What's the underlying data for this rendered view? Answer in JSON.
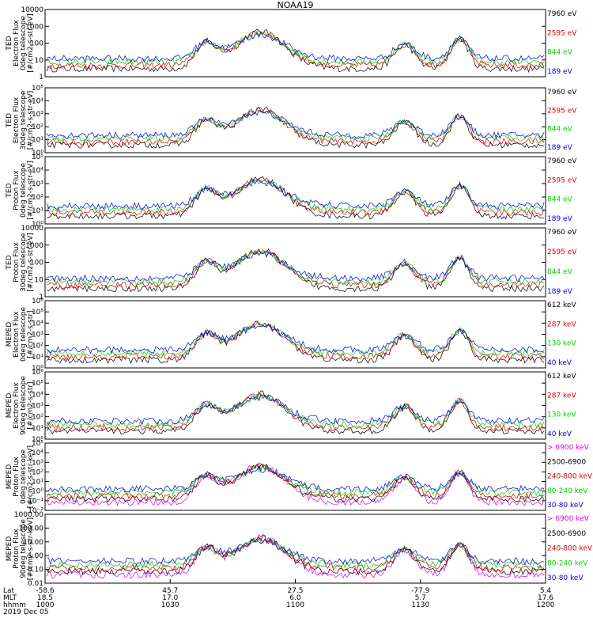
{
  "chart_data": {
    "type": "line",
    "title": "NOAA19",
    "date": "2019 Dec 05",
    "xaxis": {
      "rows": [
        {
          "label": "Lat",
          "values": [
            "-58.6",
            "45.7",
            "27.5",
            "-77.9",
            "5.4"
          ]
        },
        {
          "label": "MLT",
          "values": [
            "18.5",
            "17.0",
            "6.0",
            "5.7",
            "17.6"
          ]
        },
        {
          "label": "hhmm",
          "values": [
            "1000",
            "1030",
            "1100",
            "1130",
            "1200"
          ]
        }
      ]
    },
    "panels": [
      {
        "ylabel": [
          "TED",
          "Electron Flux",
          "0deg telescope",
          "[#/cm2-s-str-eV]"
        ],
        "yscale": "log",
        "ylim": [
          1,
          10000
        ],
        "ytick_labels": [
          "1",
          "10",
          "100",
          "1000",
          "10000"
        ],
        "legend": [
          {
            "text": "7960 eV",
            "color": "#000000"
          },
          {
            "text": "2595 eV",
            "color": "#e00000"
          },
          {
            "text": "844 eV",
            "color": "#00d000"
          },
          {
            "text": "189 eV",
            "color": "#0000e0"
          }
        ]
      },
      {
        "ylabel": [
          "TED",
          "Electron Flux",
          "30deg telescope",
          "[#/cm2-s-str-eV]"
        ],
        "yscale": "log",
        "ylim": [
          1,
          100000
        ],
        "ytick_labels": [
          "10⁰",
          "10¹",
          "10²",
          "10³",
          "10⁴",
          "10⁵"
        ],
        "legend": [
          {
            "text": "7960 eV",
            "color": "#000000"
          },
          {
            "text": "2595 eV",
            "color": "#e00000"
          },
          {
            "text": "844 eV",
            "color": "#00d000"
          },
          {
            "text": "189 eV",
            "color": "#0000e0"
          }
        ]
      },
      {
        "ylabel": [
          "TED",
          "Proton Flux",
          "0deg telescope",
          "[#/cm2-s-str-eV]"
        ],
        "yscale": "log",
        "ylim": [
          1,
          100000
        ],
        "ytick_labels": [
          "10⁰",
          "10¹",
          "10²",
          "10³",
          "10⁴",
          "10⁵"
        ],
        "legend": [
          {
            "text": "7960 eV",
            "color": "#000000"
          },
          {
            "text": "2595 eV",
            "color": "#e00000"
          },
          {
            "text": "844 eV",
            "color": "#00d000"
          },
          {
            "text": "189 eV",
            "color": "#0000e0"
          }
        ]
      },
      {
        "ylabel": [
          "TED",
          "Proton Flux",
          "30deg telescope",
          "[#/cm2-s-str-eV]"
        ],
        "yscale": "log",
        "ylim": [
          1,
          10000
        ],
        "ytick_labels": [
          "1",
          "10",
          "100",
          "1000",
          "10000"
        ],
        "legend": [
          {
            "text": "7960 eV",
            "color": "#000000"
          },
          {
            "text": "2595 eV",
            "color": "#e00000"
          },
          {
            "text": "844 eV",
            "color": "#00d000"
          },
          {
            "text": "189 eV",
            "color": "#0000e0"
          }
        ]
      },
      {
        "ylabel": [
          "MEPED",
          "Electron Flux",
          "0deg telescope",
          "[#/cm2-s-str]"
        ],
        "yscale": "log",
        "ylim": [
          1,
          1000000
        ],
        "ytick_labels": [
          "10⁰",
          "10¹",
          "10²",
          "10³",
          "10⁴",
          "10⁵",
          "10⁶"
        ],
        "legend": [
          {
            "text": "612 keV",
            "color": "#000000"
          },
          {
            "text": "287 keV",
            "color": "#e00000"
          },
          {
            "text": "130 keV",
            "color": "#00d000"
          },
          {
            "text": "40 keV",
            "color": "#0000e0"
          }
        ]
      },
      {
        "ylabel": [
          "MEPED",
          "Electron Flux",
          "90deg telescope",
          "[#/cm2-s-str]"
        ],
        "yscale": "log",
        "ylim": [
          1,
          1000000
        ],
        "ytick_labels": [
          "10⁰",
          "10¹",
          "10²",
          "10³",
          "10⁴",
          "10⁵",
          "10⁶"
        ],
        "legend": [
          {
            "text": "612 keV",
            "color": "#000000"
          },
          {
            "text": "287 keV",
            "color": "#e00000"
          },
          {
            "text": "130 keV",
            "color": "#00d000"
          },
          {
            "text": "40 keV",
            "color": "#0000e0"
          }
        ]
      },
      {
        "ylabel": [
          "MEPED",
          "Proton Flux",
          "0deg telescope",
          "[#/cm2-s-str-keV]"
        ],
        "yscale": "log",
        "ylim": [
          0.01,
          100000
        ],
        "ytick_labels": [
          "10⁻²",
          "10⁻¹",
          "10⁰",
          "10¹",
          "10²",
          "10³",
          "10⁴",
          "10⁵"
        ],
        "legend": [
          {
            "text": "> 6900 keV",
            "color": "#e000e0"
          },
          {
            "text": "2500-6900",
            "color": "#000000"
          },
          {
            "text": "240-800 keV",
            "color": "#e00000"
          },
          {
            "text": "80-240 keV",
            "color": "#00d000"
          },
          {
            "text": "30-80 keV",
            "color": "#0000e0"
          }
        ]
      },
      {
        "ylabel": [
          "MEPED",
          "Proton Flux",
          "90deg telescope",
          "[#/cm2-s-str-keV]"
        ],
        "yscale": "log",
        "ylim": [
          0.01,
          1000
        ],
        "ytick_labels": [
          "0.01",
          "0.10",
          "1.00",
          "10.00",
          "100.00",
          "1000.00"
        ],
        "legend": [
          {
            "text": "> 6900 keV",
            "color": "#e000e0"
          },
          {
            "text": "2500-6900",
            "color": "#000000"
          },
          {
            "text": "240-800 keV",
            "color": "#e00000"
          },
          {
            "text": "80-240 keV",
            "color": "#00d000"
          },
          {
            "text": "30-80 keV",
            "color": "#0000e0"
          }
        ]
      }
    ]
  }
}
